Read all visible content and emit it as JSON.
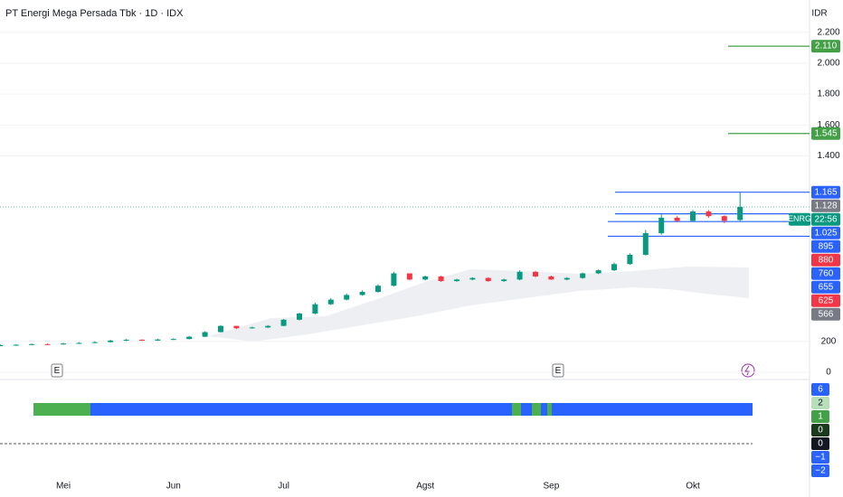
{
  "chart_data": {
    "type": "candlestick",
    "title": "PT Energi Mega Persada Tbk · 1D · IDX",
    "currency": "IDR",
    "categories": [
      null,
      null,
      null,
      null,
      "Mei",
      null,
      null,
      null,
      null,
      null,
      null,
      "Jun",
      null,
      null,
      null,
      null,
      null,
      null,
      "Jul",
      null,
      null,
      null,
      null,
      null,
      null,
      null,
      null,
      "Agst",
      null,
      null,
      null,
      null,
      null,
      null,
      null,
      "Sep",
      null,
      null,
      null,
      null,
      null,
      null,
      null,
      null,
      "Okt",
      null,
      null,
      null
    ],
    "open": [
      172,
      175,
      178,
      182,
      180,
      186,
      190,
      195,
      205,
      210,
      205,
      212,
      215,
      230,
      260,
      300,
      285,
      290,
      300,
      340,
      380,
      440,
      470,
      500,
      520,
      560,
      640,
      600,
      620,
      590,
      600,
      610,
      590,
      600,
      650,
      620,
      600,
      610,
      640,
      660,
      700,
      760,
      900,
      1000,
      980,
      1040,
      1010,
      985
    ],
    "high": [
      180,
      182,
      186,
      186,
      190,
      195,
      200,
      210,
      215,
      214,
      216,
      220,
      235,
      265,
      305,
      300,
      295,
      305,
      345,
      385,
      450,
      480,
      510,
      530,
      570,
      650,
      640,
      625,
      625,
      605,
      615,
      615,
      605,
      660,
      655,
      625,
      615,
      645,
      665,
      710,
      770,
      920,
      1020,
      1010,
      1050,
      1050,
      1015,
      1165
    ],
    "low": [
      170,
      172,
      176,
      177,
      178,
      184,
      188,
      192,
      202,
      203,
      203,
      210,
      213,
      228,
      258,
      280,
      282,
      287,
      298,
      335,
      375,
      435,
      465,
      495,
      515,
      555,
      595,
      595,
      585,
      585,
      595,
      585,
      585,
      595,
      615,
      598,
      595,
      605,
      635,
      655,
      695,
      755,
      890,
      970,
      975,
      1000,
      965,
      980
    ],
    "close": [
      175,
      178,
      182,
      180,
      186,
      190,
      195,
      205,
      210,
      205,
      212,
      215,
      230,
      260,
      300,
      285,
      290,
      300,
      340,
      380,
      440,
      470,
      500,
      520,
      560,
      640,
      600,
      620,
      590,
      600,
      610,
      590,
      600,
      650,
      620,
      600,
      610,
      640,
      660,
      700,
      760,
      900,
      1000,
      980,
      1040,
      1010,
      980,
      1070
    ],
    "up_color": "#089981",
    "down_color": "#f23645",
    "ylim": [
      -47,
      2245
    ],
    "yticks": [
      0,
      200,
      {
        "value": 1400,
        "label": "1.400"
      },
      {
        "value": 1600,
        "label": "1.600"
      },
      {
        "value": 1800,
        "label": "1.800"
      },
      {
        "value": 2000,
        "label": "2.000"
      },
      {
        "value": 2200,
        "label": "2.200"
      }
    ],
    "levels": [
      {
        "value": 2110,
        "label": "2.110",
        "color": "#43a047"
      },
      {
        "value": 1545,
        "label": "1.545",
        "color": "#43a047"
      },
      {
        "value": 1165,
        "label": "1.165",
        "color": "#2962ff"
      },
      {
        "value": 1025,
        "label": "1.025",
        "color": "#2962ff"
      },
      {
        "value": 975,
        "color": "#2962ff"
      },
      {
        "value": 880,
        "color": "#2962ff"
      }
    ],
    "badges": [
      {
        "value": 1128,
        "label": "1.128",
        "color": "#787b86"
      },
      {
        "value": 895,
        "color": "#2962ff"
      },
      {
        "value": 880,
        "color": "#f23645"
      },
      {
        "value": 760,
        "color": "#2962ff"
      },
      {
        "value": 655,
        "color": "#2962ff"
      },
      {
        "value": 625,
        "color": "#f23645"
      },
      {
        "value": 566,
        "color": "#787b86"
      }
    ],
    "current": {
      "symbol": "ENRG",
      "countdown": "22:56",
      "value": 1070,
      "color": "#089981"
    },
    "events": [
      "E",
      "E"
    ],
    "indicator": {
      "badges": [
        {
          "value": 6,
          "color": "#2962ff"
        },
        {
          "value": 2,
          "color": "#b7dfb9"
        },
        {
          "value": 1,
          "color": "#43a047"
        },
        {
          "value": 0,
          "color": "#1b3a1e"
        },
        {
          "value": 0,
          "color": "#131722"
        },
        {
          "value": -1,
          "label": "−1",
          "color": "#2962ff"
        },
        {
          "value": -2,
          "label": "−2",
          "color": "#2962ff"
        }
      ]
    }
  }
}
